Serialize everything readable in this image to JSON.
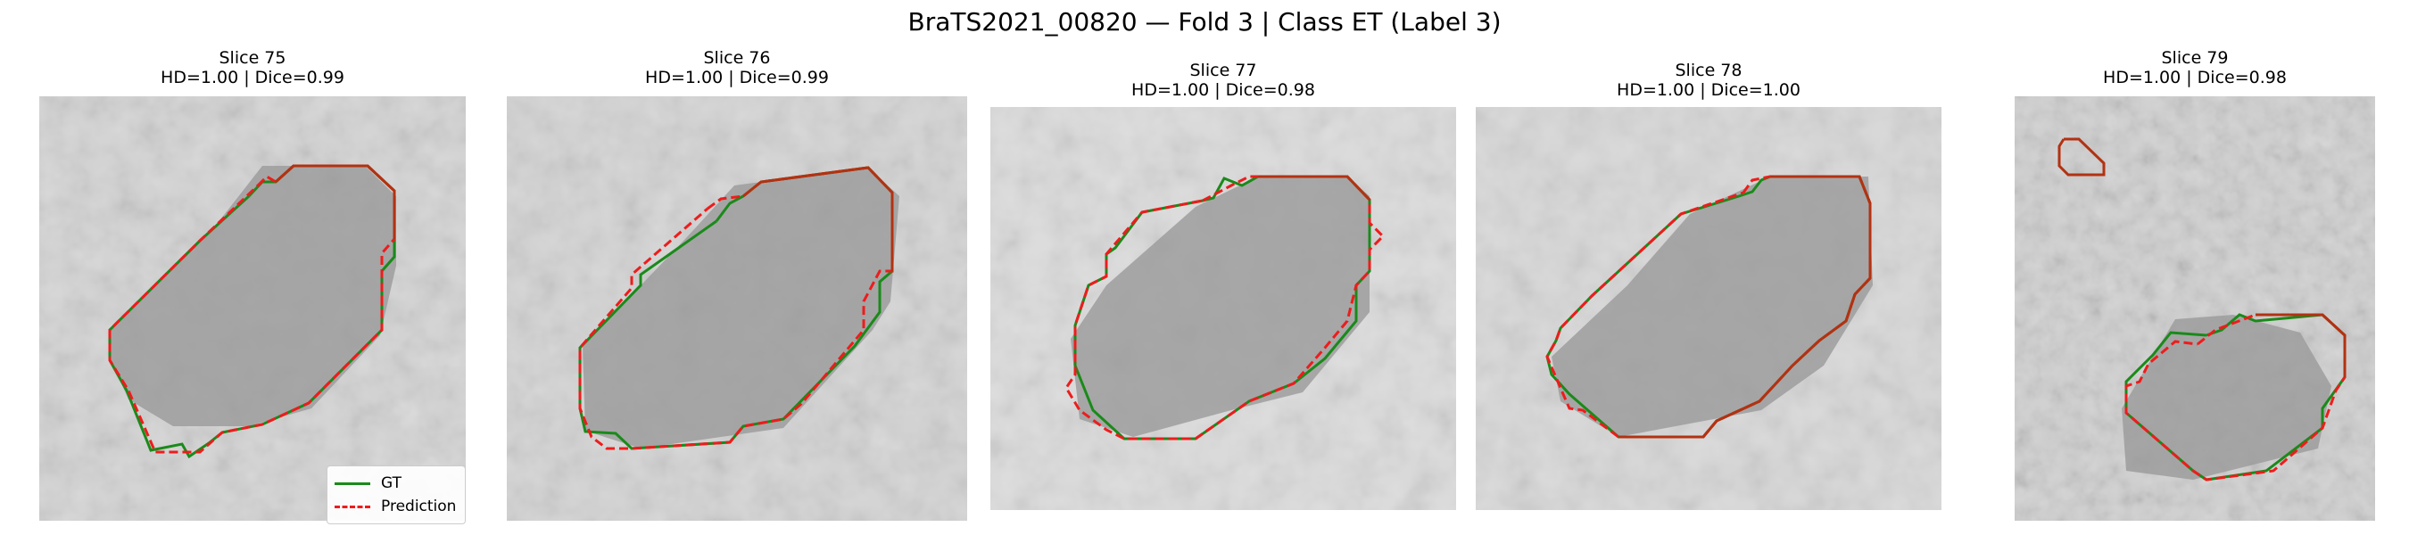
{
  "figure": {
    "title": "BraTS2021_00820 — Fold 3 | Class ET (Label 3)"
  },
  "colors": {
    "gt": "#1a8a1a",
    "prediction": "#ee1c1c",
    "background": "#d6d6d6",
    "tumor": "#9a9a9a"
  },
  "legend": {
    "gt_label": "GT",
    "prediction_label": "Prediction"
  },
  "panels": [
    {
      "slice": "Slice 75",
      "metrics": "HD=1.00 | Dice=0.99"
    },
    {
      "slice": "Slice 76",
      "metrics": "HD=1.00 | Dice=0.99"
    },
    {
      "slice": "Slice 77",
      "metrics": "HD=1.00 | Dice=0.98"
    },
    {
      "slice": "Slice 78",
      "metrics": "HD=1.00 | Dice=1.00"
    },
    {
      "slice": "Slice 79",
      "metrics": "HD=1.00 | Dice=0.98"
    }
  ]
}
